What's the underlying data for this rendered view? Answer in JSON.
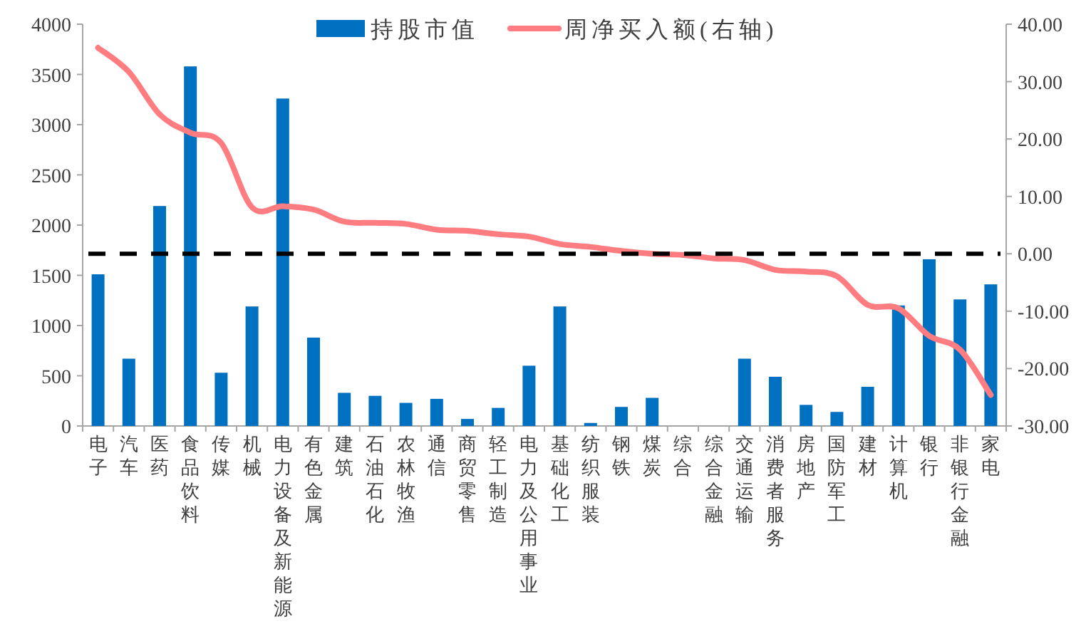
{
  "chart_data": {
    "type": "bar",
    "categories": [
      "电子",
      "汽车",
      "医药",
      "食品饮料",
      "传媒",
      "机械",
      "电力设备及新能源",
      "有色金属",
      "建筑",
      "石油石化",
      "农林牧渔",
      "通信",
      "商贸零售",
      "轻工制造",
      "电力及公用事业",
      "基础化工",
      "纺织服装",
      "钢铁",
      "煤炭",
      "综合",
      "综合金融",
      "交通运输",
      "消费者服务",
      "房地产",
      "国防军工",
      "建材",
      "计算机",
      "银行",
      "非银行金融",
      "家电"
    ],
    "series": [
      {
        "name": "持股市值",
        "color": "#0070c0",
        "values": [
          1510,
          670,
          2190,
          3580,
          530,
          1190,
          3260,
          880,
          330,
          300,
          230,
          270,
          70,
          180,
          600,
          1190,
          30,
          190,
          280,
          0,
          0,
          670,
          490,
          210,
          140,
          390,
          1200,
          1660,
          1260,
          1410
        ]
      },
      {
        "name": "周净买入额(右轴)",
        "type": "line",
        "axis": "y2",
        "color": "#ff7c80",
        "values": [
          35.9,
          31.7,
          24.3,
          21.1,
          19.3,
          8.1,
          8.3,
          7.7,
          5.6,
          5.4,
          5.2,
          4.2,
          4.0,
          3.4,
          3.0,
          1.7,
          1.2,
          0.5,
          0,
          -0.2,
          -0.8,
          -1.1,
          -2.8,
          -3.1,
          -3.9,
          -8.9,
          -9.5,
          -14.3,
          -16.7,
          -24.6
        ]
      }
    ],
    "ylim": [
      0,
      4000
    ],
    "yticks": [
      0,
      500,
      1000,
      1500,
      2000,
      2500,
      3000,
      3500,
      4000
    ],
    "y2lim": [
      -30,
      40
    ],
    "y2ticks": [
      {
        "value": -30,
        "label": "-30.00"
      },
      {
        "value": -20,
        "label": "-20.00"
      },
      {
        "value": -10,
        "label": "-10.00"
      },
      {
        "value": 0,
        "label": "0.00"
      },
      {
        "value": 10,
        "label": "10.00"
      },
      {
        "value": 20,
        "label": "20.00"
      },
      {
        "value": 30,
        "label": "30.00"
      },
      {
        "value": 40,
        "label": "40.00"
      }
    ],
    "ref_lines": [
      {
        "axis": "y2",
        "value": 0,
        "color": "#000000",
        "line_style": "dashed"
      }
    ],
    "legend": "top"
  }
}
